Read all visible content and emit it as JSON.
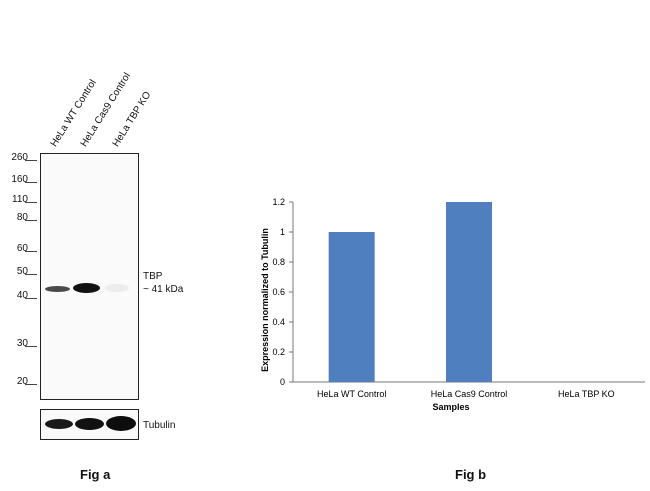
{
  "fig_a": {
    "caption": "Fig a",
    "lane_labels": [
      "HeLa WT Control",
      "HeLa Cas9 Control",
      "HeLa TBP KO"
    ],
    "markers": [
      "260",
      "160",
      "110",
      "80",
      "60",
      "50",
      "40",
      "30",
      "20"
    ],
    "band_label_line1": "TBP",
    "band_label_line2": "~ 41 kDa",
    "loading_control_label": "Tubulin",
    "band_colors": {
      "tbp": "#1a1a1a",
      "tubulin": "#151515"
    }
  },
  "fig_b": {
    "caption": "Fig b"
  },
  "chart_data": {
    "type": "bar",
    "categories": [
      "HeLa WT Control",
      "HeLa Cas9 Control",
      "HeLa TBP KO"
    ],
    "values": [
      1.0,
      1.2,
      0
    ],
    "title": "",
    "xlabel": "Samples",
    "ylabel": "Expression  normalized to Tubulin",
    "ylim": [
      0,
      1.2
    ],
    "yticks": [
      "0",
      "0.2",
      "0.4",
      "0.6",
      "0.8",
      "1",
      "1.2"
    ],
    "bar_color": "#4f7fbf",
    "grid": false
  }
}
